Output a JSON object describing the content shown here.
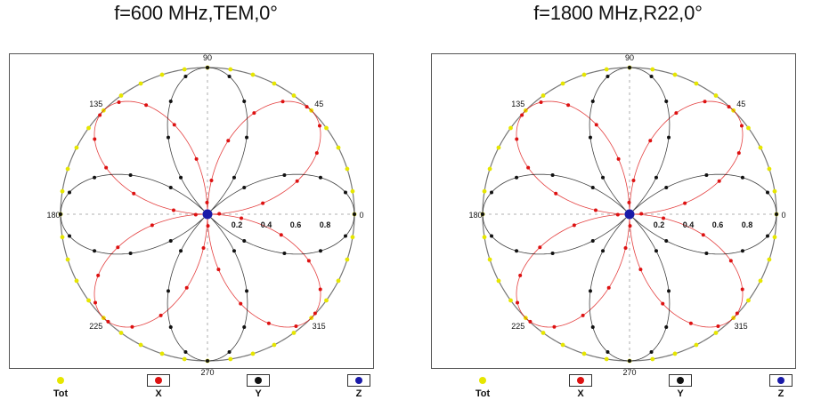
{
  "chart_data": [
    {
      "type": "polar",
      "title": "f=600 MHz,TEM,0°",
      "angle_ticks": [
        "0",
        "45",
        "90",
        "135",
        "180",
        "225",
        "270",
        "315"
      ],
      "radial_ticks": [
        "0.2",
        "0.4",
        "0.6",
        "0.8"
      ],
      "rlim": [
        0,
        1
      ],
      "legend": [
        "Tot",
        "X",
        "Y",
        "Z"
      ],
      "legend_placement": "bottom",
      "series": [
        {
          "name": "Tot",
          "color": "#e6e600",
          "function": "1",
          "values_note": ""
        },
        {
          "name": "X",
          "color": "#dd1111",
          "function": "|sin(2θ)|"
        },
        {
          "name": "Y",
          "color": "#111111",
          "function": "|cos(2θ)|"
        },
        {
          "name": "Z",
          "color": "#1a1aa8",
          "function": "0"
        }
      ]
    },
    {
      "type": "polar",
      "title": "f=1800 MHz,R22,0°",
      "angle_ticks": [
        "0",
        "45",
        "90",
        "135",
        "180",
        "225",
        "270",
        "315"
      ],
      "radial_ticks": [
        "0.2",
        "0.4",
        "0.6",
        "0.8"
      ],
      "rlim": [
        0,
        1
      ],
      "legend": [
        "Tot",
        "X",
        "Y",
        "Z"
      ],
      "legend_placement": "bottom",
      "series": [
        {
          "name": "Tot",
          "color": "#e6e600",
          "function": "1"
        },
        {
          "name": "X",
          "color": "#dd1111",
          "function": "|sin(2θ)|"
        },
        {
          "name": "Y",
          "color": "#111111",
          "function": "|cos(2θ)|"
        },
        {
          "name": "Z",
          "color": "#1a1aa8",
          "function": "0"
        }
      ]
    }
  ]
}
